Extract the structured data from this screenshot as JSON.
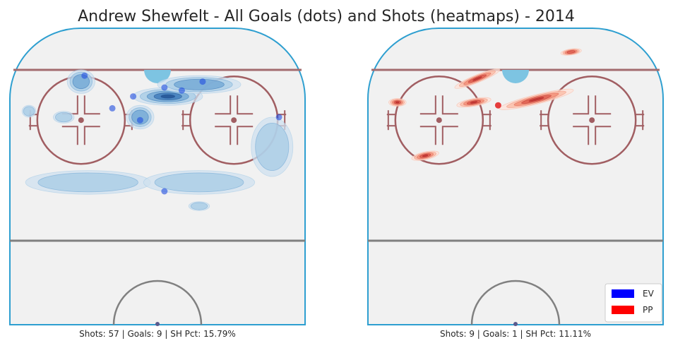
{
  "colors": {
    "ice": "#f1f1f1",
    "boards": "#2e9fd0",
    "red_line": "#a36b6e",
    "faceoff": "#a15e62",
    "crease": "#7dc4e2",
    "center_line": "#808080",
    "ev": "#0000ff",
    "pp": "#ff0000"
  },
  "chart_data": [
    {
      "type": "heatmap",
      "title": "Andrew Shewfelt - All Goals (dots) and Shots (heatmaps) - 2014",
      "panel": "left",
      "situation": "EV",
      "caption": "Shots: 57 | Goals: 9 | SH Pct: 15.79%",
      "stats": {
        "shots": 57,
        "goals": 9,
        "sh_pct": 15.79
      },
      "xlim": [
        -42.5,
        42.5
      ],
      "ylim": [
        0,
        100
      ],
      "goals": [
        {
          "x": -21,
          "y": 84
        },
        {
          "x": -13,
          "y": 73
        },
        {
          "x": -7,
          "y": 77
        },
        {
          "x": -5,
          "y": 69
        },
        {
          "x": 2,
          "y": 80
        },
        {
          "x": 7,
          "y": 79
        },
        {
          "x": 13,
          "y": 82
        },
        {
          "x": 35,
          "y": 70
        },
        {
          "x": 2,
          "y": 45
        }
      ],
      "density": [
        {
          "x": 3,
          "y": 77,
          "sx": 10,
          "sy": 3,
          "w": 1.0
        },
        {
          "x": -22,
          "y": 82,
          "sx": 4,
          "sy": 4,
          "w": 0.55
        },
        {
          "x": 12,
          "y": 81,
          "sx": 12,
          "sy": 3,
          "w": 0.45
        },
        {
          "x": -5,
          "y": 70,
          "sx": 4,
          "sy": 4,
          "w": 0.45
        },
        {
          "x": -20,
          "y": 48,
          "sx": 18,
          "sy": 4,
          "w": 0.3
        },
        {
          "x": 12,
          "y": 48,
          "sx": 16,
          "sy": 4,
          "w": 0.35
        },
        {
          "x": 33,
          "y": 60,
          "sx": 6,
          "sy": 10,
          "w": 0.3
        },
        {
          "x": -27,
          "y": 70,
          "sx": 3,
          "sy": 2,
          "w": 0.25
        },
        {
          "x": -37,
          "y": 72,
          "sx": 2,
          "sy": 2,
          "w": 0.2
        },
        {
          "x": 12,
          "y": 40,
          "sx": 3,
          "sy": 1.5,
          "w": 0.2
        }
      ]
    },
    {
      "type": "heatmap",
      "panel": "right",
      "situation": "PP",
      "caption": "Shots: 9 | Goals: 1 | SH Pct: 11.11%",
      "stats": {
        "shots": 9,
        "goals": 1,
        "sh_pct": 11.11
      },
      "xlim": [
        -42.5,
        42.5
      ],
      "ylim": [
        0,
        100
      ],
      "goals": [
        {
          "x": -5,
          "y": 74
        }
      ],
      "density": [
        {
          "x": -26,
          "y": 57,
          "sx": 4,
          "sy": 1.3,
          "w": 1.0,
          "angle": -12
        },
        {
          "x": -12,
          "y": 75,
          "sx": 5,
          "sy": 1.3,
          "w": 0.9,
          "angle": -10
        },
        {
          "x": -11,
          "y": 83,
          "sx": 7,
          "sy": 1.3,
          "w": 0.9,
          "angle": -22
        },
        {
          "x": -34,
          "y": 75,
          "sx": 2.5,
          "sy": 1.3,
          "w": 0.8,
          "angle": 0
        },
        {
          "x": 6,
          "y": 76,
          "sx": 11,
          "sy": 1.6,
          "w": 1.0,
          "angle": -14
        },
        {
          "x": 16,
          "y": 92,
          "sx": 3,
          "sy": 1,
          "w": 0.7,
          "angle": -8
        }
      ]
    }
  ],
  "legend": {
    "position": "bottom-right",
    "items": [
      {
        "label": "EV",
        "color": "#0000ff"
      },
      {
        "label": "PP",
        "color": "#ff0000"
      }
    ]
  }
}
